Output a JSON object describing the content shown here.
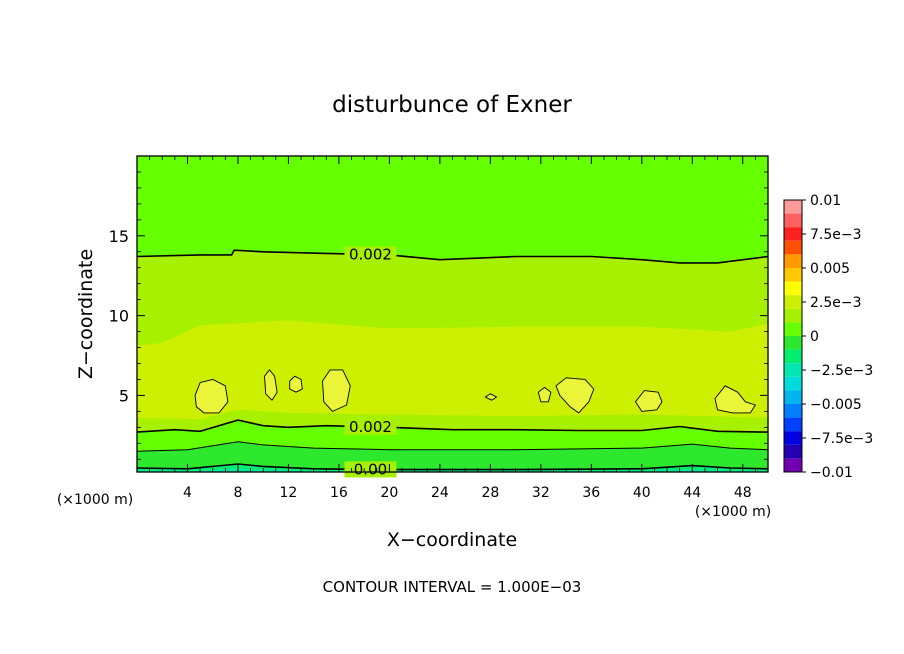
{
  "chart_data": {
    "type": "heatmap",
    "title": "disturbunce of Exner",
    "xlabel": "X−coordinate",
    "ylabel": "Z−coordinate",
    "x_unit": "(×1000 m)",
    "y_unit": "(×1000 m)",
    "xlim": [
      0,
      50
    ],
    "ylim": [
      0.2,
      20
    ],
    "x_ticks": [
      4,
      8,
      12,
      16,
      20,
      24,
      28,
      32,
      36,
      40,
      44,
      48
    ],
    "y_ticks": [
      5,
      10,
      15
    ],
    "footer": "CONTOUR INTERVAL = 1.000E−03",
    "contour_interval": 0.001,
    "grid": false,
    "colorbar": {
      "placement": "right",
      "min": -0.01,
      "max": 0.01,
      "tick_labels": [
        "0.01",
        "7.5e−3",
        "0.005",
        "2.5e−3",
        "0",
        "−2.5e−3",
        "−0.005",
        "−7.5e−3",
        "−0.01"
      ],
      "bins": [
        {
          "from": 0.009,
          "to": 0.01,
          "color": "#ff9a9a"
        },
        {
          "from": 0.008,
          "to": 0.009,
          "color": "#ff6060"
        },
        {
          "from": 0.007,
          "to": 0.008,
          "color": "#ff2020"
        },
        {
          "from": 0.006,
          "to": 0.007,
          "color": "#ff5000"
        },
        {
          "from": 0.005,
          "to": 0.006,
          "color": "#ff9a00"
        },
        {
          "from": 0.004,
          "to": 0.005,
          "color": "#ffc800"
        },
        {
          "from": 0.003,
          "to": 0.004,
          "color": "#ffff00"
        },
        {
          "from": 0.002,
          "to": 0.003,
          "color": "#ccf000"
        },
        {
          "from": 0.001,
          "to": 0.002,
          "color": "#a6f000"
        },
        {
          "from": 0.0,
          "to": 0.001,
          "color": "#66ff00"
        },
        {
          "from": -0.001,
          "to": 0.0,
          "color": "#2ee82e"
        },
        {
          "from": -0.002,
          "to": -0.001,
          "color": "#00ee70"
        },
        {
          "from": -0.003,
          "to": -0.002,
          "color": "#00e8b0"
        },
        {
          "from": -0.004,
          "to": -0.003,
          "color": "#00dcdc"
        },
        {
          "from": -0.005,
          "to": -0.004,
          "color": "#00b4f0"
        },
        {
          "from": -0.006,
          "to": -0.005,
          "color": "#0080ff"
        },
        {
          "from": -0.007,
          "to": -0.006,
          "color": "#0040ff"
        },
        {
          "from": -0.008,
          "to": -0.007,
          "color": "#0000e0"
        },
        {
          "from": -0.009,
          "to": -0.008,
          "color": "#2400b0"
        },
        {
          "from": -0.01,
          "to": -0.009,
          "color": "#7000b0"
        }
      ]
    },
    "bands": [
      {
        "color": "#00ee70",
        "top": [
          [
            0,
            0.45
          ],
          [
            4,
            0.4
          ],
          [
            8,
            0.7
          ],
          [
            10,
            0.55
          ],
          [
            14,
            0.4
          ],
          [
            20,
            0.35
          ],
          [
            30,
            0.35
          ],
          [
            40,
            0.4
          ],
          [
            44,
            0.6
          ],
          [
            47,
            0.45
          ],
          [
            50,
            0.4
          ]
        ]
      },
      {
        "color": "#2ee82e",
        "top": [
          [
            0,
            1.5
          ],
          [
            4,
            1.6
          ],
          [
            8,
            2.1
          ],
          [
            10,
            1.9
          ],
          [
            14,
            1.7
          ],
          [
            20,
            1.6
          ],
          [
            30,
            1.6
          ],
          [
            40,
            1.7
          ],
          [
            44,
            1.95
          ],
          [
            47,
            1.7
          ],
          [
            50,
            1.6
          ]
        ]
      },
      {
        "color": "#66ff00",
        "top": [
          [
            0,
            2.7
          ],
          [
            3,
            2.85
          ],
          [
            5,
            2.75
          ],
          [
            8,
            3.45
          ],
          [
            10,
            3.1
          ],
          [
            12,
            3.0
          ],
          [
            15,
            3.1
          ],
          [
            20,
            3.0
          ],
          [
            25,
            2.85
          ],
          [
            30,
            2.85
          ],
          [
            35,
            2.8
          ],
          [
            40,
            2.8
          ],
          [
            43,
            3.05
          ],
          [
            46,
            2.75
          ],
          [
            50,
            2.7
          ]
        ]
      },
      {
        "color": "#a6f000",
        "top": [
          [
            0,
            3.6
          ],
          [
            5,
            3.5
          ],
          [
            8,
            4.1
          ],
          [
            12,
            3.9
          ],
          [
            20,
            3.8
          ],
          [
            30,
            3.7
          ],
          [
            40,
            3.8
          ],
          [
            50,
            3.6
          ]
        ]
      },
      {
        "color": "#ccf000",
        "top": [
          [
            0,
            8.1
          ],
          [
            2,
            8.3
          ],
          [
            5,
            9.4
          ],
          [
            12,
            9.7
          ],
          [
            20,
            9.2
          ],
          [
            30,
            9.3
          ],
          [
            40,
            9.3
          ],
          [
            47,
            9.0
          ],
          [
            50,
            9.5
          ]
        ]
      },
      {
        "color": "#a6f000",
        "top": [
          [
            0,
            13.7
          ],
          [
            5,
            13.8
          ],
          [
            7.5,
            13.8
          ],
          [
            7.7,
            14.1
          ],
          [
            10,
            14.0
          ],
          [
            15,
            13.9
          ],
          [
            20,
            13.8
          ],
          [
            24,
            13.5
          ],
          [
            30,
            13.7
          ],
          [
            36,
            13.7
          ],
          [
            40,
            13.5
          ],
          [
            43,
            13.3
          ],
          [
            46,
            13.3
          ],
          [
            50,
            13.7
          ]
        ]
      }
    ],
    "background_color": "#66ff00",
    "contours": [
      {
        "level": 0.0,
        "label": "0.00",
        "label_x": 18.5,
        "points": [
          [
            0,
            0.45
          ],
          [
            4,
            0.4
          ],
          [
            8,
            0.7
          ],
          [
            10,
            0.55
          ],
          [
            14,
            0.4
          ],
          [
            20,
            0.35
          ],
          [
            30,
            0.35
          ],
          [
            40,
            0.4
          ],
          [
            44,
            0.6
          ],
          [
            47,
            0.45
          ],
          [
            50,
            0.4
          ]
        ]
      },
      {
        "level": 0.001,
        "label": "",
        "label_x": null,
        "points": [
          [
            0,
            1.5
          ],
          [
            4,
            1.6
          ],
          [
            8,
            2.1
          ],
          [
            10,
            1.9
          ],
          [
            14,
            1.7
          ],
          [
            20,
            1.6
          ],
          [
            30,
            1.6
          ],
          [
            40,
            1.7
          ],
          [
            44,
            1.95
          ],
          [
            47,
            1.7
          ],
          [
            50,
            1.6
          ]
        ]
      },
      {
        "level": 0.002,
        "label": "0.002",
        "label_x": 18.5,
        "points": [
          [
            0,
            2.7
          ],
          [
            3,
            2.85
          ],
          [
            5,
            2.75
          ],
          [
            8,
            3.45
          ],
          [
            10,
            3.1
          ],
          [
            12,
            3.0
          ],
          [
            15,
            3.1
          ],
          [
            20,
            3.0
          ],
          [
            25,
            2.85
          ],
          [
            30,
            2.85
          ],
          [
            35,
            2.8
          ],
          [
            40,
            2.8
          ],
          [
            43,
            3.05
          ],
          [
            46,
            2.75
          ],
          [
            50,
            2.7
          ]
        ]
      },
      {
        "level": 0.002,
        "label": "0.002",
        "label_x": 18.5,
        "points": [
          [
            0,
            13.7
          ],
          [
            5,
            13.8
          ],
          [
            7.5,
            13.8
          ],
          [
            7.7,
            14.1
          ],
          [
            10,
            14.0
          ],
          [
            15,
            13.9
          ],
          [
            20,
            13.8
          ],
          [
            24,
            13.5
          ],
          [
            30,
            13.7
          ],
          [
            36,
            13.7
          ],
          [
            40,
            13.5
          ],
          [
            43,
            13.3
          ],
          [
            46,
            13.3
          ],
          [
            50,
            13.7
          ]
        ]
      }
    ],
    "closed_regions": [
      {
        "level": 0.003,
        "points": [
          [
            4.6,
            5.0
          ],
          [
            5.0,
            5.8
          ],
          [
            6.0,
            6.0
          ],
          [
            7.0,
            5.6
          ],
          [
            7.2,
            4.6
          ],
          [
            6.5,
            3.9
          ],
          [
            5.3,
            3.9
          ],
          [
            4.7,
            4.3
          ]
        ]
      },
      {
        "level": 0.003,
        "points": [
          [
            10.1,
            6.2
          ],
          [
            10.5,
            6.6
          ],
          [
            10.9,
            6.2
          ],
          [
            11.1,
            5.2
          ],
          [
            10.7,
            4.7
          ],
          [
            10.2,
            5.1
          ]
        ]
      },
      {
        "level": 0.003,
        "points": [
          [
            12.1,
            5.9
          ],
          [
            12.5,
            6.2
          ],
          [
            13.0,
            6.0
          ],
          [
            13.1,
            5.4
          ],
          [
            12.6,
            5.2
          ],
          [
            12.1,
            5.4
          ]
        ]
      },
      {
        "level": 0.003,
        "points": [
          [
            14.7,
            5.9
          ],
          [
            15.3,
            6.6
          ],
          [
            16.3,
            6.6
          ],
          [
            16.9,
            5.6
          ],
          [
            16.6,
            4.4
          ],
          [
            15.5,
            4.0
          ],
          [
            14.8,
            4.6
          ]
        ]
      },
      {
        "level": 0.003,
        "points": [
          [
            27.6,
            4.9
          ],
          [
            28.0,
            5.1
          ],
          [
            28.5,
            4.9
          ],
          [
            28.1,
            4.7
          ]
        ]
      },
      {
        "level": 0.003,
        "points": [
          [
            31.8,
            5.2
          ],
          [
            32.3,
            5.5
          ],
          [
            32.8,
            5.2
          ],
          [
            32.6,
            4.6
          ],
          [
            32.0,
            4.6
          ]
        ]
      },
      {
        "level": 0.003,
        "points": [
          [
            33.2,
            5.6
          ],
          [
            34.0,
            6.1
          ],
          [
            35.5,
            6.0
          ],
          [
            36.2,
            5.4
          ],
          [
            35.8,
            4.6
          ],
          [
            35.0,
            3.9
          ],
          [
            34.3,
            4.3
          ],
          [
            33.5,
            5.0
          ]
        ]
      },
      {
        "level": 0.003,
        "points": [
          [
            39.5,
            4.6
          ],
          [
            40.2,
            5.3
          ],
          [
            41.3,
            5.2
          ],
          [
            41.6,
            4.6
          ],
          [
            41.2,
            4.1
          ],
          [
            40.0,
            4.0
          ]
        ]
      },
      {
        "level": 0.003,
        "points": [
          [
            45.8,
            4.8
          ],
          [
            46.6,
            5.6
          ],
          [
            47.6,
            5.2
          ],
          [
            48.2,
            4.6
          ],
          [
            49.0,
            4.4
          ],
          [
            48.6,
            3.9
          ],
          [
            47.2,
            3.9
          ],
          [
            46.0,
            4.1
          ]
        ]
      }
    ]
  }
}
